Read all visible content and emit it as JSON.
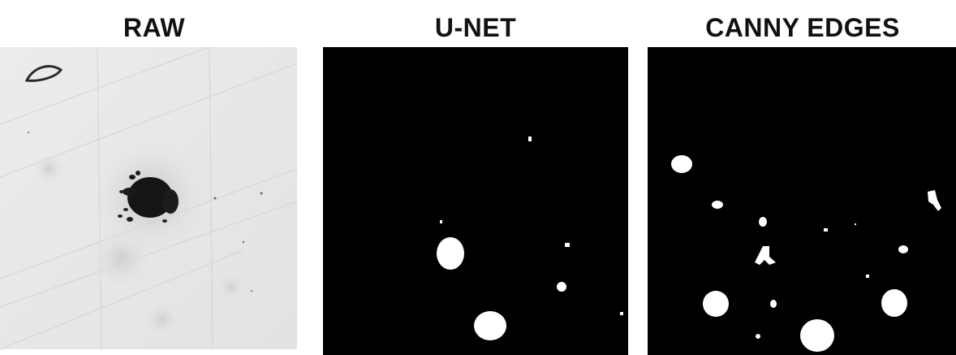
{
  "panels": [
    {
      "title": "RAW",
      "kind": "grayscale-microscopy"
    },
    {
      "title": "U-NET",
      "kind": "binary-mask"
    },
    {
      "title": "CANNY EDGES",
      "kind": "binary-mask"
    }
  ],
  "colors": {
    "mask_bg": "#000000",
    "mask_fg": "#ffffff",
    "raw_bg": "#e6e6e6",
    "title": "#111111"
  }
}
